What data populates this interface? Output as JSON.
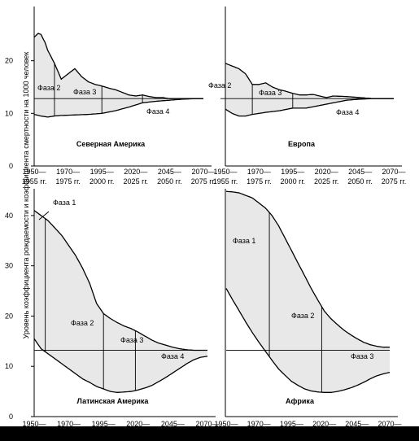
{
  "ylabel": "Уровень коэффициента рождаемости и коэффициента смертности на 1000 человек",
  "chart_data": [
    {
      "id": "na",
      "type": "area",
      "title": "Северная Америка",
      "ylim": [
        0,
        30
      ],
      "yticks": [
        0,
        10,
        20
      ],
      "x_labels_top": [
        "1950—",
        "1970—",
        "1995—",
        "2020—",
        "2045—",
        "2070—"
      ],
      "x_labels_bottom": [
        "1955 гг.",
        "1975 гг.",
        "2000 гг.",
        "2025 гг.",
        "2050 гг.",
        "2075 гг."
      ],
      "series": [
        {
          "name": "Рождаемость",
          "x": [
            1950,
            1953,
            1955,
            1958,
            1960,
            1965,
            1970,
            1975,
            1980,
            1985,
            1990,
            1995,
            2000,
            2005,
            2010,
            2015,
            2020,
            2025,
            2030,
            2035,
            2040,
            2045,
            2050,
            2060,
            2070,
            2075
          ],
          "values": [
            24.5,
            25.2,
            25.0,
            23.5,
            22.0,
            19.5,
            16.5,
            17.5,
            18.5,
            17.0,
            16.0,
            15.5,
            15.2,
            14.8,
            14.5,
            14.0,
            13.5,
            13.3,
            13.5,
            13.2,
            13.0,
            13.0,
            12.8,
            12.8,
            12.8,
            12.8
          ]
        },
        {
          "name": "Смертность",
          "x": [
            1950,
            1955,
            1960,
            1965,
            1970,
            1980,
            1990,
            2000,
            2010,
            2020,
            2030,
            2040,
            2050,
            2060,
            2070,
            2075
          ],
          "values": [
            9.8,
            9.5,
            9.3,
            9.5,
            9.6,
            9.7,
            9.8,
            10.0,
            10.5,
            11.2,
            12.0,
            12.3,
            12.5,
            12.7,
            12.8,
            12.8
          ]
        }
      ],
      "replacement_level": 12.8,
      "phase_bounds": [
        1965,
        2000,
        2030
      ],
      "phases": [
        "Фаза 2",
        "Фаза 3",
        "Фаза 4"
      ]
    },
    {
      "id": "eu",
      "type": "area",
      "title": "Европа",
      "ylim": [
        0,
        30
      ],
      "x_labels_top": [
        "1950—",
        "1970—",
        "1995—",
        "2020—",
        "2045—",
        "2070—"
      ],
      "x_labels_bottom": [
        "1955 гг.",
        "1975 гг.",
        "2000 гг.",
        "2025 гг.",
        "2050 гг.",
        "2075 гг."
      ],
      "series": [
        {
          "name": "Рождаемость",
          "x": [
            1950,
            1955,
            1960,
            1965,
            1970,
            1975,
            1980,
            1985,
            1990,
            1995,
            2000,
            2005,
            2010,
            2015,
            2020,
            2025,
            2030,
            2040,
            2050,
            2060,
            2070,
            2075
          ],
          "values": [
            19.5,
            19.0,
            18.5,
            17.5,
            15.5,
            15.5,
            15.8,
            15.0,
            14.5,
            14.2,
            13.8,
            13.5,
            13.5,
            13.6,
            13.3,
            13.0,
            13.3,
            13.2,
            13.0,
            12.8,
            12.8,
            12.8
          ]
        },
        {
          "name": "Смертность",
          "x": [
            1950,
            1955,
            1960,
            1965,
            1970,
            1980,
            1990,
            2000,
            2010,
            2020,
            2030,
            2040,
            2050,
            2060,
            2070,
            2075
          ],
          "values": [
            10.8,
            10.0,
            9.5,
            9.5,
            9.8,
            10.2,
            10.5,
            11.0,
            11.0,
            11.5,
            12.0,
            12.5,
            12.7,
            12.8,
            12.8,
            12.8
          ]
        }
      ],
      "replacement_level": 12.8,
      "phase_bounds": [
        1970,
        2000
      ],
      "phases": [
        "Фаза 2",
        "Фаза 3",
        "Фаза 4"
      ]
    },
    {
      "id": "la",
      "type": "area",
      "title": "Латинская Америка",
      "ylim": [
        0,
        45
      ],
      "yticks": [
        0,
        10,
        20,
        30,
        40
      ],
      "x_labels_top": [
        "1950—",
        "1970—",
        "1995—",
        "2020—",
        "2045—",
        "2070—"
      ],
      "series": [
        {
          "name": "Рождаемость",
          "x": [
            1950,
            1955,
            1960,
            1965,
            1970,
            1975,
            1980,
            1985,
            1990,
            1995,
            2000,
            2005,
            2010,
            2015,
            2020,
            2025,
            2030,
            2035,
            2040,
            2045,
            2050,
            2055,
            2060,
            2065,
            2070,
            2075
          ],
          "values": [
            41.0,
            40.0,
            39.0,
            37.5,
            36.0,
            34.0,
            32.0,
            29.5,
            26.5,
            22.5,
            20.5,
            19.5,
            18.7,
            18.0,
            17.5,
            16.8,
            16.0,
            15.2,
            14.6,
            14.2,
            13.8,
            13.5,
            13.3,
            13.2,
            13.2,
            13.2
          ]
        },
        {
          "name": "Смертность",
          "x": [
            1950,
            1955,
            1960,
            1965,
            1970,
            1975,
            1980,
            1985,
            1990,
            1995,
            2000,
            2005,
            2010,
            2015,
            2020,
            2025,
            2030,
            2035,
            2040,
            2045,
            2050,
            2055,
            2060,
            2065,
            2070,
            2075
          ],
          "values": [
            15.5,
            13.5,
            12.5,
            11.5,
            10.5,
            9.5,
            8.5,
            7.5,
            6.8,
            6.0,
            5.5,
            5.0,
            4.8,
            4.9,
            5.0,
            5.3,
            5.7,
            6.2,
            7.0,
            7.8,
            8.7,
            9.6,
            10.5,
            11.3,
            11.8,
            12.0
          ]
        }
      ],
      "replacement_level": 13.2,
      "phase_bounds": [
        1958,
        2000,
        2023
      ],
      "phases": [
        "Фаза 1",
        "Фаза 2",
        "Фаза 3",
        "Фаза 4"
      ]
    },
    {
      "id": "af",
      "type": "area",
      "title": "Африка",
      "ylim": [
        0,
        45
      ],
      "x_labels_top": [
        "1950—",
        "1970—",
        "1995—",
        "2020—",
        "2045—",
        "2070—"
      ],
      "series": [
        {
          "name": "Рождаемость",
          "x": [
            1950,
            1955,
            1960,
            1965,
            1970,
            1975,
            1980,
            1985,
            1990,
            1995,
            2000,
            2005,
            2010,
            2015,
            2020,
            2025,
            2030,
            2035,
            2040,
            2045,
            2050,
            2055,
            2060,
            2065,
            2070,
            2075
          ],
          "values": [
            44.8,
            44.7,
            44.5,
            44.0,
            43.5,
            42.5,
            41.5,
            40.0,
            38.0,
            35.5,
            33.0,
            30.5,
            28.0,
            25.5,
            23.2,
            21.0,
            19.5,
            18.3,
            17.2,
            16.3,
            15.5,
            14.8,
            14.3,
            14.0,
            13.8,
            13.8
          ]
        },
        {
          "name": "Смертность",
          "x": [
            1950,
            1955,
            1960,
            1965,
            1970,
            1975,
            1980,
            1985,
            1990,
            1995,
            2000,
            2005,
            2010,
            2015,
            2020,
            2025,
            2030,
            2035,
            2040,
            2045,
            2050,
            2055,
            2060,
            2065,
            2070,
            2075
          ],
          "values": [
            25.5,
            23.2,
            21.0,
            18.8,
            16.7,
            14.8,
            13.0,
            11.2,
            9.5,
            8.2,
            7.0,
            6.2,
            5.5,
            5.1,
            4.9,
            4.8,
            4.8,
            5.0,
            5.3,
            5.7,
            6.2,
            6.8,
            7.5,
            8.1,
            8.5,
            8.8
          ]
        }
      ],
      "replacement_level": 13.2,
      "phase_bounds": [
        1983,
        2023
      ],
      "phases": [
        "Фаза 1",
        "Фаза 2",
        "Фаза 3"
      ]
    }
  ]
}
